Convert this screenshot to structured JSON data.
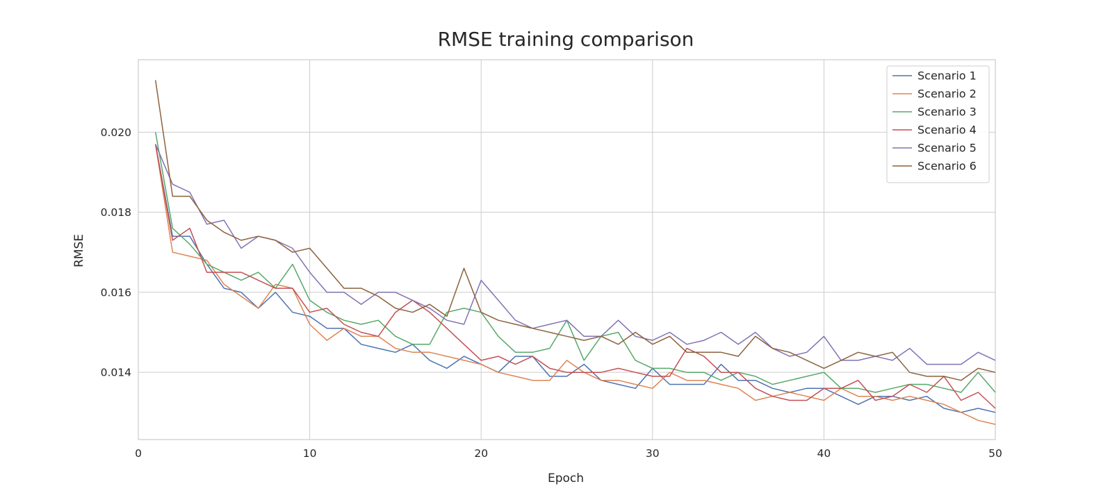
{
  "chart_data": {
    "type": "line",
    "title": "RMSE training comparison",
    "xlabel": "Epoch",
    "ylabel": "RMSE",
    "xlim": [
      0,
      50
    ],
    "ylim": [
      0.01232,
      0.02181
    ],
    "xticks": [
      0,
      10,
      20,
      30,
      40,
      50
    ],
    "yticks": [
      0.014,
      0.016,
      0.018,
      0.02
    ],
    "ytick_labels": [
      "0.014",
      "0.016",
      "0.018",
      "0.020"
    ],
    "grid": true,
    "legend_position": "top-right",
    "x": [
      1,
      2,
      3,
      4,
      5,
      6,
      7,
      8,
      9,
      10,
      11,
      12,
      13,
      14,
      15,
      16,
      17,
      18,
      19,
      20,
      21,
      22,
      23,
      24,
      25,
      26,
      27,
      28,
      29,
      30,
      31,
      32,
      33,
      34,
      35,
      36,
      37,
      38,
      39,
      40,
      41,
      42,
      43,
      44,
      45,
      46,
      47,
      48,
      49,
      50
    ],
    "series": [
      {
        "name": "Scenario 1",
        "color": "#4c72b0",
        "values": [
          0.0197,
          0.0174,
          0.0174,
          0.0167,
          0.0161,
          0.016,
          0.0156,
          0.016,
          0.0155,
          0.0154,
          0.0151,
          0.0151,
          0.0147,
          0.0146,
          0.0145,
          0.0147,
          0.0143,
          0.0141,
          0.0144,
          0.0142,
          0.014,
          0.0144,
          0.0144,
          0.0139,
          0.0139,
          0.0142,
          0.0138,
          0.0137,
          0.0136,
          0.0141,
          0.0137,
          0.0137,
          0.0137,
          0.0142,
          0.0138,
          0.0138,
          0.0136,
          0.0135,
          0.0136,
          0.0136,
          0.0134,
          0.0132,
          0.0134,
          0.0134,
          0.0133,
          0.0134,
          0.0131,
          0.013,
          0.0131,
          0.013
        ]
      },
      {
        "name": "Scenario 2",
        "color": "#dd8452",
        "values": [
          0.0197,
          0.017,
          0.0169,
          0.0168,
          0.0162,
          0.0159,
          0.0156,
          0.0162,
          0.0161,
          0.0152,
          0.0148,
          0.0151,
          0.0149,
          0.0149,
          0.0146,
          0.0145,
          0.0145,
          0.0144,
          0.0143,
          0.0142,
          0.014,
          0.0139,
          0.0138,
          0.0138,
          0.0143,
          0.014,
          0.0138,
          0.0138,
          0.0137,
          0.0136,
          0.014,
          0.0138,
          0.0138,
          0.0137,
          0.0136,
          0.0133,
          0.0134,
          0.0135,
          0.0134,
          0.0133,
          0.0136,
          0.0134,
          0.0134,
          0.0133,
          0.0134,
          0.0133,
          0.0132,
          0.013,
          0.0128,
          0.0127
        ]
      },
      {
        "name": "Scenario 3",
        "color": "#55a868",
        "values": [
          0.02,
          0.0176,
          0.0172,
          0.0167,
          0.0165,
          0.0163,
          0.0165,
          0.0161,
          0.0167,
          0.0158,
          0.0155,
          0.0153,
          0.0152,
          0.0153,
          0.0149,
          0.0147,
          0.0147,
          0.0155,
          0.0156,
          0.0155,
          0.0149,
          0.0145,
          0.0145,
          0.0146,
          0.0153,
          0.0143,
          0.0149,
          0.015,
          0.0143,
          0.0141,
          0.0141,
          0.014,
          0.014,
          0.0138,
          0.014,
          0.0139,
          0.0137,
          0.0138,
          0.0139,
          0.014,
          0.0136,
          0.0136,
          0.0135,
          0.0136,
          0.0137,
          0.0137,
          0.0136,
          0.0135,
          0.014,
          0.0135
        ]
      },
      {
        "name": "Scenario 4",
        "color": "#c44e52",
        "values": [
          0.0197,
          0.0173,
          0.0176,
          0.0165,
          0.0165,
          0.0165,
          0.0163,
          0.0161,
          0.0161,
          0.0155,
          0.0156,
          0.0152,
          0.015,
          0.0149,
          0.0155,
          0.0158,
          0.0155,
          0.0151,
          0.0147,
          0.0143,
          0.0144,
          0.0142,
          0.0144,
          0.0141,
          0.014,
          0.014,
          0.014,
          0.0141,
          0.014,
          0.0139,
          0.0139,
          0.0146,
          0.0144,
          0.014,
          0.014,
          0.0136,
          0.0134,
          0.0133,
          0.0133,
          0.0136,
          0.0136,
          0.0138,
          0.0133,
          0.0134,
          0.0137,
          0.0135,
          0.0139,
          0.0133,
          0.0135,
          0.0131
        ]
      },
      {
        "name": "Scenario 5",
        "color": "#8172b3",
        "values": [
          0.0197,
          0.0187,
          0.0185,
          0.0177,
          0.0178,
          0.0171,
          0.0174,
          0.0173,
          0.0171,
          0.0165,
          0.016,
          0.016,
          0.0157,
          0.016,
          0.016,
          0.0158,
          0.0156,
          0.0153,
          0.0152,
          0.0163,
          0.0158,
          0.0153,
          0.0151,
          0.0152,
          0.0153,
          0.0149,
          0.0149,
          0.0153,
          0.0149,
          0.0148,
          0.015,
          0.0147,
          0.0148,
          0.015,
          0.0147,
          0.015,
          0.0146,
          0.0144,
          0.0145,
          0.0149,
          0.0143,
          0.0143,
          0.0144,
          0.0143,
          0.0146,
          0.0142,
          0.0142,
          0.0142,
          0.0145,
          0.0143
        ]
      },
      {
        "name": "Scenario 6",
        "color": "#8c613c",
        "values": [
          0.0213,
          0.0184,
          0.0184,
          0.0178,
          0.0175,
          0.0173,
          0.0174,
          0.0173,
          0.017,
          0.0171,
          0.0166,
          0.0161,
          0.0161,
          0.0159,
          0.0156,
          0.0155,
          0.0157,
          0.0154,
          0.0166,
          0.0155,
          0.0153,
          0.0152,
          0.0151,
          0.015,
          0.0149,
          0.0148,
          0.0149,
          0.0147,
          0.015,
          0.0147,
          0.0149,
          0.0145,
          0.0145,
          0.0145,
          0.0144,
          0.0149,
          0.0146,
          0.0145,
          0.0143,
          0.0141,
          0.0143,
          0.0145,
          0.0144,
          0.0145,
          0.014,
          0.0139,
          0.0139,
          0.0138,
          0.0141,
          0.014
        ]
      }
    ]
  }
}
